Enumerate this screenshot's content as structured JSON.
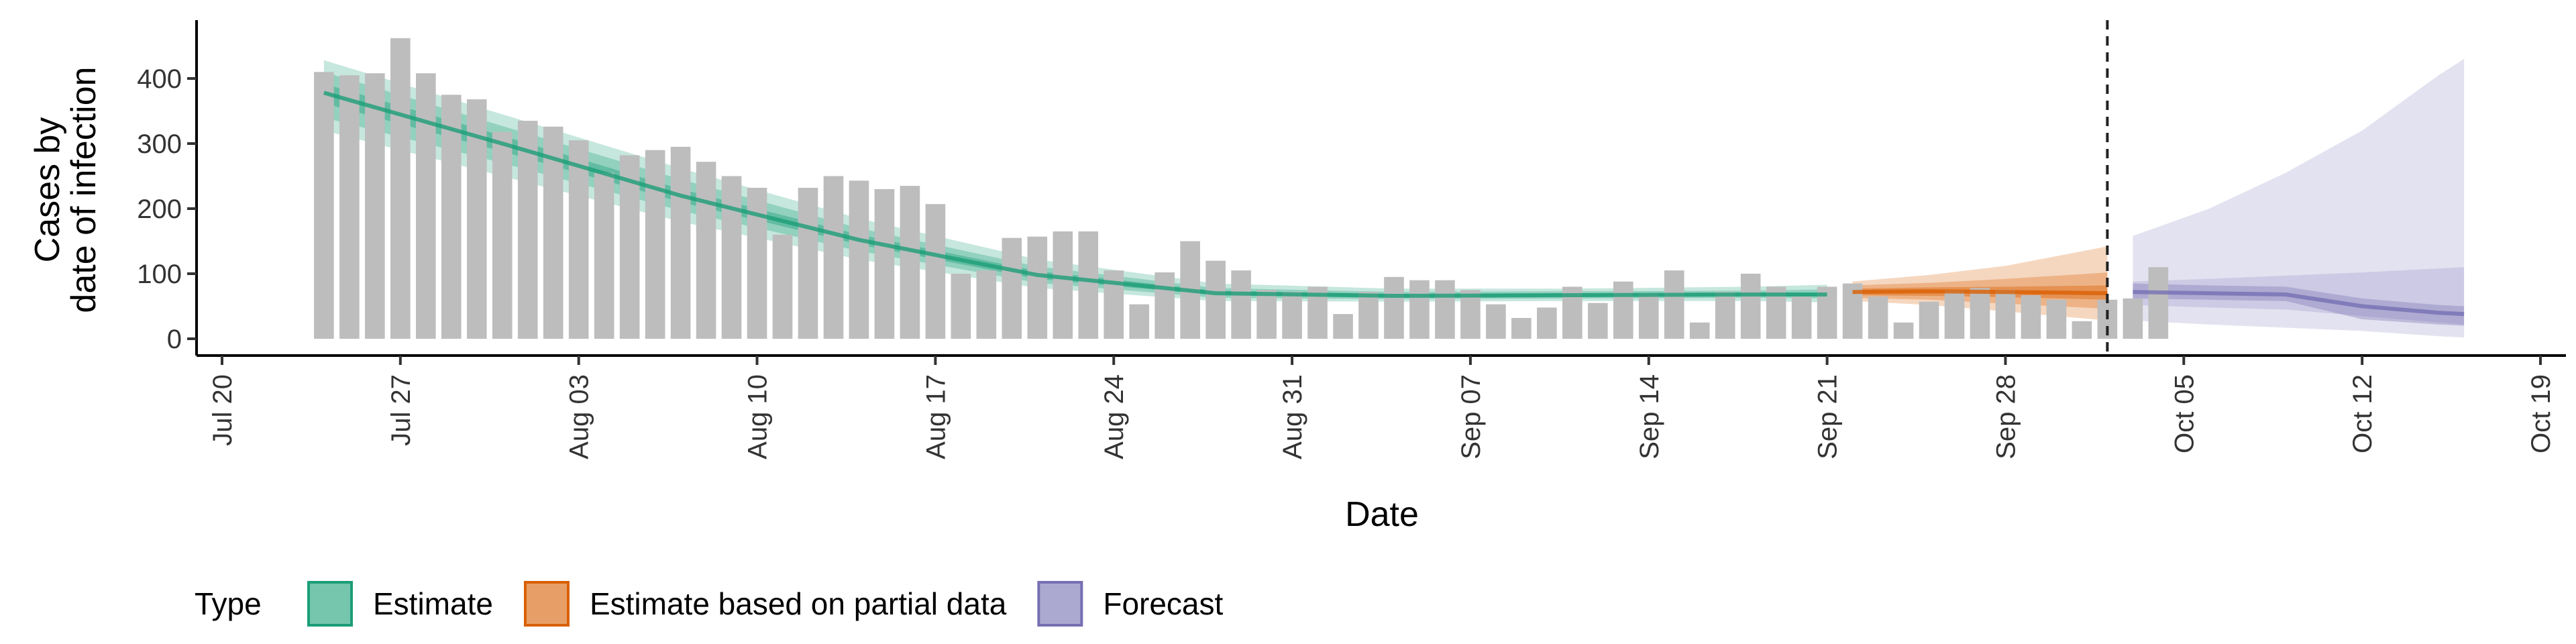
{
  "chart_data": {
    "type": "bar",
    "title": "",
    "xlabel": "Date",
    "ylabel_lines": [
      "Cases by",
      "date of infection"
    ],
    "ylim": [
      0,
      490
    ],
    "y_ticks": [
      0,
      100,
      200,
      300,
      400
    ],
    "x_range": [
      "2020-07-19",
      "2020-10-20"
    ],
    "x_ticks": [
      {
        "date": "2020-07-20",
        "label": "Jul 20"
      },
      {
        "date": "2020-07-27",
        "label": "Jul 27"
      },
      {
        "date": "2020-08-03",
        "label": "Aug 03"
      },
      {
        "date": "2020-08-10",
        "label": "Aug 10"
      },
      {
        "date": "2020-08-17",
        "label": "Aug 17"
      },
      {
        "date": "2020-08-24",
        "label": "Aug 24"
      },
      {
        "date": "2020-08-31",
        "label": "Aug 31"
      },
      {
        "date": "2020-09-07",
        "label": "Sep 07"
      },
      {
        "date": "2020-09-14",
        "label": "Sep 14"
      },
      {
        "date": "2020-09-21",
        "label": "Sep 21"
      },
      {
        "date": "2020-09-28",
        "label": "Sep 28"
      },
      {
        "date": "2020-10-05",
        "label": "Oct 05"
      },
      {
        "date": "2020-10-12",
        "label": "Oct 12"
      },
      {
        "date": "2020-10-19",
        "label": "Oct 19"
      }
    ],
    "bar_start_date": "2020-07-24",
    "bars": [
      410,
      405,
      408,
      462,
      408,
      375,
      368,
      318,
      335,
      326,
      305,
      255,
      282,
      290,
      295,
      272,
      250,
      232,
      160,
      232,
      250,
      243,
      230,
      235,
      207,
      100,
      105,
      155,
      157,
      165,
      165,
      105,
      53,
      102,
      150,
      120,
      105,
      75,
      72,
      80,
      38,
      72,
      95,
      90,
      90,
      75,
      53,
      32,
      48,
      80,
      55,
      88,
      70,
      105,
      25,
      72,
      100,
      80,
      65,
      80,
      85,
      65,
      25,
      57,
      75,
      78,
      75,
      67,
      60,
      27,
      60,
      62,
      110
    ],
    "vline_date": "2020-10-02",
    "bands": [
      {
        "type": "Estimate",
        "color": "#1b9e77",
        "x": [
          "2020-07-24",
          "2020-07-31",
          "2020-08-07",
          "2020-08-14",
          "2020-08-21",
          "2020-08-28",
          "2020-09-04",
          "2020-09-11",
          "2020-09-18",
          "2020-09-21"
        ],
        "median": [
          378,
          300,
          220,
          152,
          98,
          70,
          66,
          67,
          68,
          68
        ],
        "lower_outer": [
          320,
          250,
          180,
          122,
          78,
          58,
          57,
          58,
          58,
          56
        ],
        "upper_outer": [
          428,
          345,
          262,
          185,
          122,
          85,
          77,
          77,
          80,
          83
        ],
        "lower_mid": [
          340,
          270,
          197,
          135,
          86,
          63,
          61,
          62,
          63,
          62
        ],
        "upper_mid": [
          410,
          327,
          245,
          170,
          111,
          78,
          72,
          73,
          74,
          76
        ],
        "lower_inner": [
          362,
          288,
          210,
          145,
          92,
          67,
          64,
          65,
          66,
          65
        ],
        "upper_inner": [
          392,
          312,
          230,
          160,
          104,
          74,
          69,
          70,
          71,
          71
        ]
      },
      {
        "type": "Estimate based on partial data",
        "color": "#d95f02",
        "x": [
          "2020-09-22",
          "2020-09-25",
          "2020-09-28",
          "2020-10-02"
        ],
        "median": [
          72,
          73,
          72,
          70
        ],
        "lower_outer": [
          58,
          52,
          42,
          28
        ],
        "upper_outer": [
          88,
          98,
          112,
          142
        ],
        "lower_mid": [
          63,
          60,
          54,
          46
        ],
        "upper_mid": [
          82,
          86,
          92,
          102
        ],
        "lower_inner": [
          67,
          66,
          64,
          60
        ],
        "upper_inner": [
          77,
          79,
          80,
          82
        ]
      },
      {
        "type": "Forecast",
        "color": "#7570b3",
        "x": [
          "2020-10-03",
          "2020-10-06",
          "2020-10-09",
          "2020-10-12",
          "2020-10-15",
          "2020-10-16"
        ],
        "median": [
          72,
          70,
          68,
          50,
          40,
          38
        ],
        "lower_outer": [
          28,
          22,
          17,
          12,
          4,
          2
        ],
        "upper_outer": [
          158,
          200,
          255,
          320,
          405,
          430
        ],
        "lower_mid": [
          52,
          48,
          45,
          35,
          25,
          22
        ],
        "upper_mid": [
          88,
          92,
          97,
          102,
          108,
          110
        ],
        "lower_inner": [
          62,
          60,
          58,
          30,
          22,
          20
        ],
        "upper_inner": [
          85,
          82,
          80,
          62,
          52,
          50
        ]
      }
    ],
    "legend": {
      "title": "Type",
      "position": "bottom",
      "items": [
        {
          "label": "Estimate",
          "color": "#1b9e77"
        },
        {
          "label": "Estimate based on partial data",
          "color": "#d95f02"
        },
        {
          "label": "Forecast",
          "color": "#7570b3"
        }
      ]
    }
  }
}
